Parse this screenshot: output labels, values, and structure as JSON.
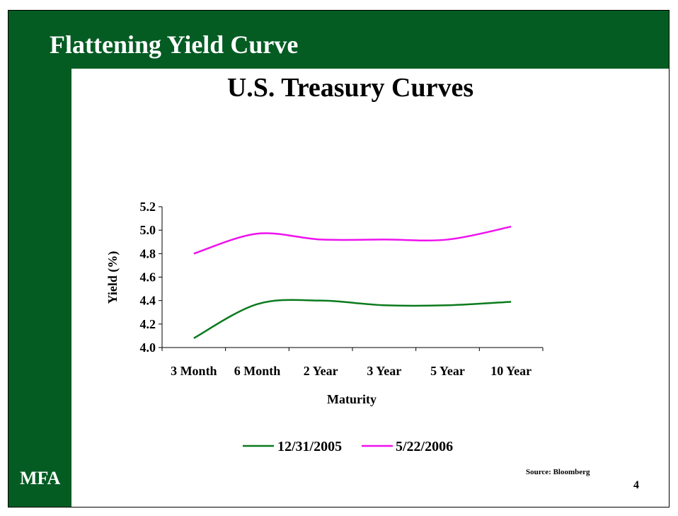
{
  "slide": {
    "title": "Flattening Yield Curve",
    "logo": "MFA",
    "source": "Source: Bloomberg",
    "page_number": "4",
    "brand_color": "#045c23"
  },
  "chart_data": {
    "type": "line",
    "title": "U.S. Treasury Curves",
    "xlabel": "Maturity",
    "ylabel": "Yield (%)",
    "categories": [
      "3 Month",
      "6 Month",
      "2 Year",
      "3 Year",
      "5 Year",
      "10 Year"
    ],
    "ylim": [
      4.0,
      5.2
    ],
    "yticks": [
      "4.0",
      "4.2",
      "4.4",
      "4.6",
      "4.8",
      "5.0",
      "5.2"
    ],
    "grid": false,
    "legend_position": "bottom",
    "series": [
      {
        "name": "12/31/2005",
        "color": "#0a7a1c",
        "values": [
          4.08,
          4.37,
          4.4,
          4.36,
          4.36,
          4.39
        ]
      },
      {
        "name": "5/22/2006",
        "color": "#ee11ee",
        "values": [
          4.8,
          4.97,
          4.92,
          4.92,
          4.92,
          5.03
        ]
      }
    ]
  }
}
